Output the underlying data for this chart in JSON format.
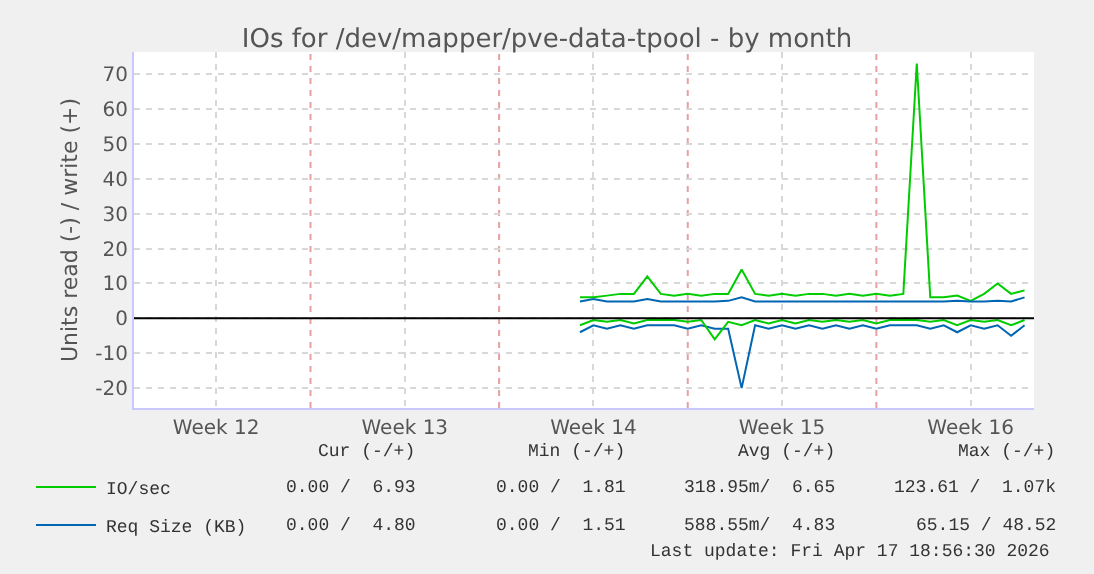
{
  "chart_data": {
    "type": "line",
    "title": "IOs for /dev/mapper/pve-data-tpool - by month",
    "ylabel": "Units read (-) / write (+)",
    "x": [
      "2026-04-02T00:00",
      "2026-04-02T12:00",
      "2026-04-03T00:00",
      "2026-04-03T12:00",
      "2026-04-04T00:00",
      "2026-04-04T12:00",
      "2026-04-05T00:00",
      "2026-04-05T12:00",
      "2026-04-06T00:00",
      "2026-04-06T12:00",
      "2026-04-07T00:00",
      "2026-04-07T12:00",
      "2026-04-08T00:00",
      "2026-04-08T12:00",
      "2026-04-09T00:00",
      "2026-04-09T12:00",
      "2026-04-10T00:00",
      "2026-04-10T12:00",
      "2026-04-11T00:00",
      "2026-04-11T12:00",
      "2026-04-12T00:00",
      "2026-04-12T12:00",
      "2026-04-13T00:00",
      "2026-04-13T12:00",
      "2026-04-14T00:00",
      "2026-04-14T12:00",
      "2026-04-15T00:00",
      "2026-04-15T12:00",
      "2026-04-16T00:00",
      "2026-04-16T12:00",
      "2026-04-17T00:00",
      "2026-04-17T12:00",
      "2026-04-18T00:00",
      "2026-04-18T12:00"
    ],
    "xlim": [
      "2026-03-16T10:48",
      "2026-04-18T20:24"
    ],
    "xticks": [
      {
        "value": "2026-03-19T12:00",
        "label": "Week 12"
      },
      {
        "value": "2026-03-26T12:00",
        "label": "Week 13"
      },
      {
        "value": "2026-04-02T12:00",
        "label": "Week 14"
      },
      {
        "value": "2026-04-09T12:00",
        "label": "Week 15"
      },
      {
        "value": "2026-04-16T12:00",
        "label": "Week 16"
      }
    ],
    "ylim": [
      -25.7,
      76.3
    ],
    "yticks": [
      -20,
      -10,
      0,
      10,
      20,
      30,
      40,
      50,
      60,
      70
    ],
    "series": [
      {
        "name": "IO/sec",
        "color": "#00cc00",
        "values": [
          6,
          6,
          6.5,
          7,
          7,
          12,
          7,
          6.5,
          7,
          6.5,
          7,
          7,
          14,
          7,
          6.5,
          7,
          6.5,
          7,
          7,
          6.5,
          7,
          6.5,
          7,
          6.5,
          7,
          73,
          6,
          6,
          6.5,
          5,
          7,
          10,
          7,
          8
        ]
      },
      {
        "name": "Req Size (KB)",
        "color": "#0066b3",
        "values": [
          4.8,
          5.5,
          4.8,
          4.8,
          4.8,
          5.5,
          4.8,
          4.8,
          4.8,
          4.8,
          4.8,
          5,
          6,
          4.8,
          4.8,
          4.8,
          4.8,
          4.8,
          4.8,
          4.8,
          4.8,
          4.8,
          4.8,
          4.8,
          4.8,
          4.8,
          4.8,
          4.8,
          5,
          4.8,
          4.8,
          5,
          4.8,
          6
        ]
      },
      {
        "color": "#0066b3",
        "values": [
          -4,
          -2,
          -3,
          -2,
          -3,
          -2,
          -2,
          -2,
          -3,
          -2,
          -3,
          -3,
          -20,
          -2,
          -3,
          -2,
          -3,
          -2,
          -3,
          -2,
          -3,
          -2,
          -3,
          -2,
          -2,
          -2,
          -3,
          -2,
          -4,
          -2,
          -3,
          -2,
          -5,
          -2
        ]
      },
      {
        "color": "#00cc00",
        "values": [
          -2,
          -0.5,
          -1,
          -0.5,
          -1.5,
          -0.5,
          -0.5,
          -0.5,
          -1,
          -0.5,
          -6,
          -1,
          -2,
          -0.5,
          -1.5,
          -0.5,
          -1.5,
          -0.5,
          -1,
          -0.5,
          -1,
          -0.5,
          -1.5,
          -0.5,
          -0.5,
          -0.5,
          -1,
          -0.5,
          -2,
          -0.5,
          -1,
          -0.5,
          -2,
          -0.5
        ]
      }
    ],
    "ref_lines": [
      {
        "axis": "y",
        "value": 0,
        "color": "#000000",
        "line_style": "solid"
      },
      {
        "axis": "x",
        "value": "2026-03-23",
        "color": "#e8a0a0",
        "line_style": "dotted"
      },
      {
        "axis": "x",
        "value": "2026-03-30",
        "color": "#e8a0a0",
        "line_style": "dotted"
      },
      {
        "axis": "x",
        "value": "2026-04-06",
        "color": "#e8a0a0",
        "line_style": "dotted"
      },
      {
        "axis": "x",
        "value": "2026-04-13",
        "color": "#e8a0a0",
        "line_style": "dotted"
      }
    ],
    "annotations": [
      "Cur (-/+)",
      "Min (-/+)",
      "Avg (-/+)",
      "Max (-/+)",
      "0.00 /  6.93",
      "0.00 /  1.81",
      "318.95m/  6.65",
      "123.61 /  1.07k",
      "0.00 /  4.80",
      "0.00 /  1.51",
      "588.55m/  4.83",
      "65.15 / 48.52",
      "Last update: Fri Apr 17 18:56:30 2026"
    ],
    "grid": true,
    "legend": "bottom left",
    "marker": "none",
    "line_style": "solid"
  }
}
